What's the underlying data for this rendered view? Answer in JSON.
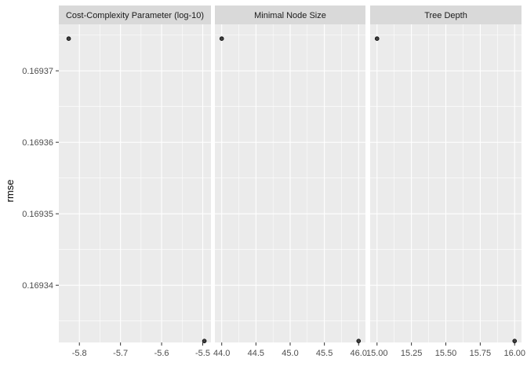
{
  "chart_data": {
    "type": "scatter",
    "ylabel": "rmse",
    "y_ticks": [
      0.16934,
      0.16935,
      0.16936,
      0.16937
    ],
    "y_tick_labels": [
      "0.16934",
      "0.16935",
      "0.16936",
      "0.16937"
    ],
    "ylim": [
      0.169332,
      0.1693765
    ],
    "grid": true,
    "colors": {
      "panel_bg": "#ebebeb",
      "strip_bg": "#d9d9d9",
      "grid": "#ffffff",
      "point_fill": "#404040",
      "point_stroke": "#000000"
    },
    "facets": [
      {
        "title": "Cost-Complexity Parameter (log-10)",
        "xlim": [
          -5.85,
          -5.48
        ],
        "x_ticks": [
          -5.8,
          -5.7,
          -5.6,
          -5.5
        ],
        "x_tick_labels": [
          "-5.8",
          "-5.7",
          "-5.6",
          "-5.5"
        ],
        "points": [
          {
            "x": -5.826,
            "y": 0.1693745
          },
          {
            "x": -5.496,
            "y": 0.1693322
          }
        ]
      },
      {
        "title": "Minimal Node Size",
        "xlim": [
          43.9,
          46.1
        ],
        "x_ticks": [
          44.0,
          44.5,
          45.0,
          45.5,
          46.0
        ],
        "x_tick_labels": [
          "44.0",
          "44.5",
          "45.0",
          "45.5",
          "46.0"
        ],
        "points": [
          {
            "x": 44.0,
            "y": 0.1693745
          },
          {
            "x": 46.0,
            "y": 0.1693322
          }
        ]
      },
      {
        "title": "Tree Depth",
        "xlim": [
          14.95,
          16.05
        ],
        "x_ticks": [
          15.0,
          15.25,
          15.5,
          15.75,
          16.0
        ],
        "x_tick_labels": [
          "15.00",
          "15.25",
          "15.50",
          "15.75",
          "16.00"
        ],
        "points": [
          {
            "x": 15.0,
            "y": 0.1693745
          },
          {
            "x": 16.0,
            "y": 0.1693322
          }
        ]
      }
    ]
  }
}
